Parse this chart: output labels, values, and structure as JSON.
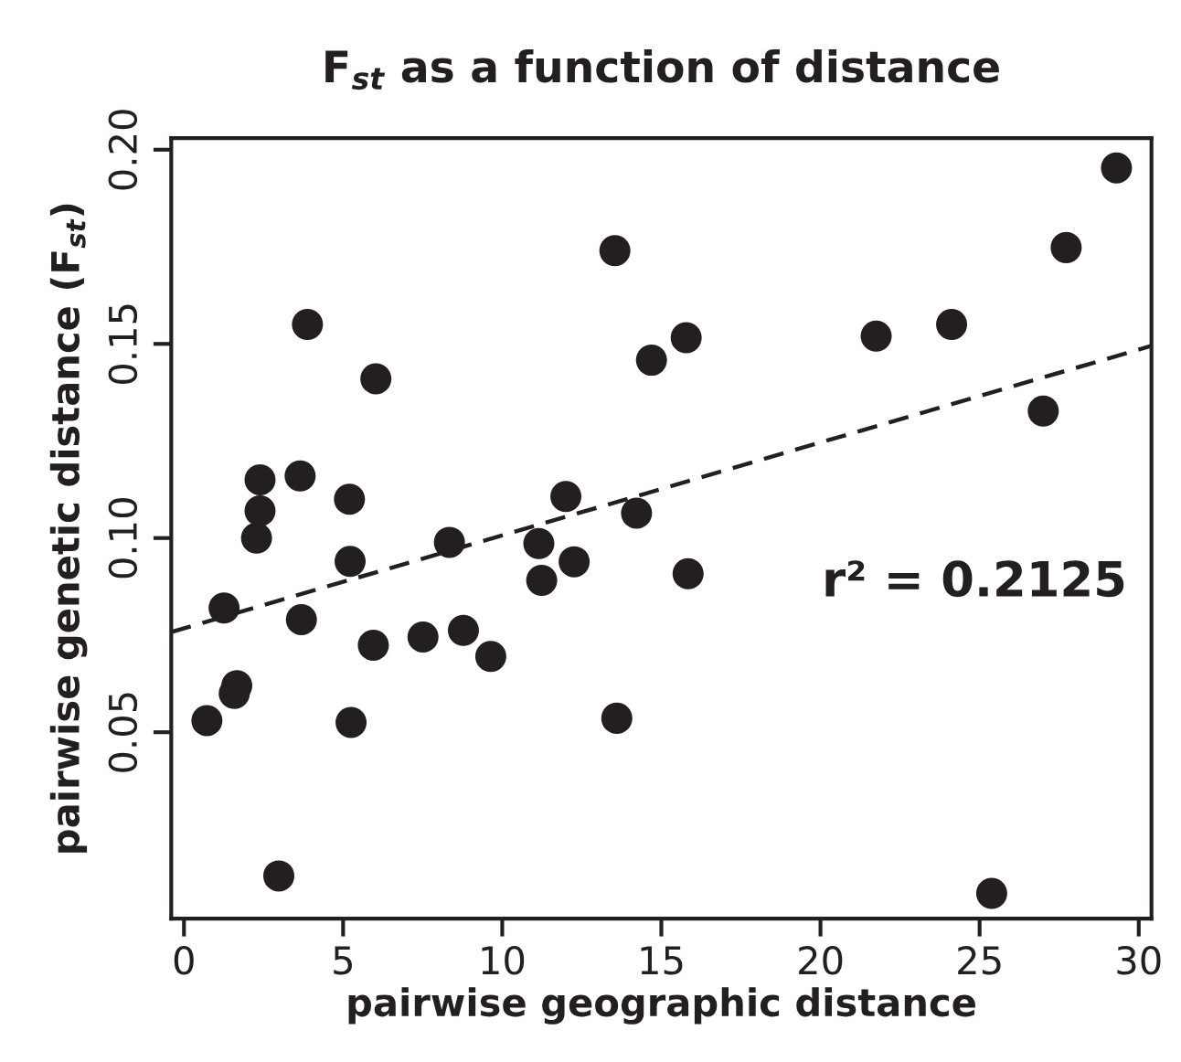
{
  "chart_data": {
    "type": "scatter",
    "title": "F$_{st}$ as a function of distance",
    "xlabel": "pairwise geographic distance",
    "ylabel": "pairwise genetic distance (F$_{st}$)",
    "annotations": [
      "r² = 0.2125"
    ],
    "series": [
      {
        "color": "#231f20",
        "marker": "circle",
        "x": [
          0.72,
          1.26,
          1.66,
          1.58,
          2.98,
          2.28,
          2.39,
          2.39,
          3.65,
          3.69,
          3.88,
          5.2,
          5.22,
          5.25,
          6.03,
          5.95,
          7.51,
          8.34,
          8.78,
          9.64,
          11.15,
          11.24,
          12.0,
          12.26,
          13.6,
          13.54,
          14.22,
          14.69,
          15.78,
          15.84,
          21.75,
          24.12,
          27.0,
          27.72,
          29.3,
          25.38
        ],
        "values": [
          0.053,
          0.082,
          0.062,
          0.06,
          0.013,
          0.1,
          0.107,
          0.115,
          0.116,
          0.079,
          0.155,
          0.11,
          0.094,
          0.0525,
          0.141,
          0.0724,
          0.0745,
          0.0989,
          0.0762,
          0.0695,
          0.0986,
          0.0891,
          0.1107,
          0.0939,
          0.0536,
          0.174,
          0.1064,
          0.1458,
          0.1516,
          0.0908,
          0.152,
          0.155,
          0.1327,
          0.1748,
          0.1953,
          0.0085
        ]
      },
      {
        "type": "line",
        "color": "#231f20",
        "marker": "none",
        "line_style": "dashed",
        "x": [
          -0.4,
          30.4
        ],
        "values": [
          0.0758,
          0.1495
        ]
      }
    ],
    "xlim": [
      -0.4,
      30.4
    ],
    "ylim": [
      0.002,
      0.203
    ],
    "xticks": [
      0,
      5,
      10,
      15,
      20,
      25,
      30
    ],
    "yticks": [
      {
        "value": 0.05,
        "label": "0.05"
      },
      {
        "value": 0.1,
        "label": "0.10"
      },
      {
        "value": 0.15,
        "label": "0.15"
      },
      {
        "value": 0.2,
        "label": "0.20"
      }
    ],
    "grid": false,
    "legend": false
  }
}
